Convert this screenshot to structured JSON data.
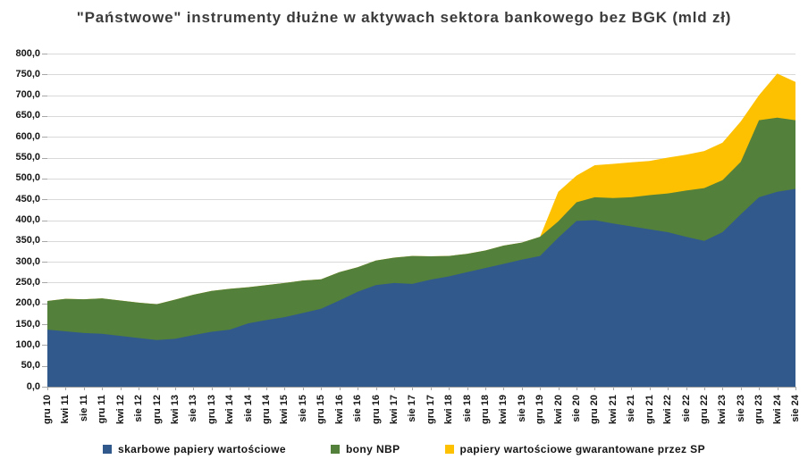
{
  "title": "\"Państwowe\" instrumenty dłużne w aktywach sektora bankowego bez BGK (mld zł)",
  "chart_data": {
    "type": "area",
    "stacked": true,
    "title": "\"Państwowe\" instrumenty dłużne w aktywach sektora bankowego bez BGK (mld zł)",
    "unit": "mld zł",
    "grid": true,
    "legend_position": "bottom",
    "x_label_rotation": -90,
    "ylim": [
      0,
      800
    ],
    "ytick_step": 50,
    "y_tick_labels": [
      "800,0",
      "750,0",
      "700,0",
      "650,0",
      "600,0",
      "550,0",
      "500,0",
      "450,0",
      "400,0",
      "350,0",
      "300,0",
      "250,0",
      "200,0",
      "150,0",
      "100,0",
      "50,0",
      "0,0"
    ],
    "categories": [
      "gru 10",
      "kwi 11",
      "sie 11",
      "gru 11",
      "kwi 12",
      "sie 12",
      "gru 12",
      "kwi 13",
      "sie 13",
      "gru 13",
      "kwi 14",
      "sie 14",
      "gru 14",
      "kwi 15",
      "sie 15",
      "gru 15",
      "kwi 16",
      "sie 16",
      "gru 16",
      "kwi 17",
      "sie 17",
      "gru 17",
      "kwi 18",
      "sie 18",
      "gru 18",
      "kwi 19",
      "sie 19",
      "gru 19",
      "kwi 20",
      "sie 20",
      "gru 20",
      "kwi 21",
      "sie 21",
      "gru 21",
      "kwi 22",
      "sie 22",
      "gru 22",
      "kwi 23",
      "sie 23",
      "gru 23",
      "kwi 24",
      "sie 24"
    ],
    "series": [
      {
        "name": "skarbowe papiery wartościowe",
        "color": "#31598C",
        "values": [
          137,
          133,
          129,
          127,
          122,
          117,
          112,
          115,
          124,
          132,
          137,
          152,
          160,
          167,
          177,
          187,
          207,
          228,
          244,
          249,
          247,
          257,
          265,
          275,
          285,
          295,
          305,
          314,
          358,
          398,
          400,
          392,
          385,
          378,
          371,
          360,
          350,
          371,
          414,
          455,
          468,
          475
        ]
      },
      {
        "name": "bony NBP",
        "color": "#53803B",
        "values": [
          69,
          78,
          81,
          85,
          85,
          85,
          86,
          94,
          97,
          98,
          98,
          87,
          84,
          82,
          78,
          71,
          68,
          59,
          59,
          61,
          67,
          56,
          49,
          44,
          42,
          44,
          41,
          46,
          39,
          45,
          55,
          61,
          70,
          82,
          93,
          111,
          127,
          125,
          126,
          185,
          178,
          165
        ]
      },
      {
        "name": "papiery wartościowe gwarantowane przez SP",
        "color": "#FDC101",
        "values": [
          0,
          0,
          0,
          0,
          0,
          0,
          0,
          0,
          0,
          0,
          0,
          0,
          0,
          0,
          0,
          0,
          0,
          0,
          0,
          0,
          0,
          0,
          0,
          0,
          0,
          0,
          0,
          0,
          71,
          64,
          77,
          82,
          84,
          82,
          86,
          86,
          89,
          90,
          97,
          60,
          106,
          92
        ]
      }
    ]
  },
  "colors": {
    "background": "#ffffff",
    "gridline": "#d9d9d9",
    "axis_line": "#9b9b9b",
    "tick": "#a6a6a6",
    "label_text": "#141414",
    "title_text": "#3b3b3b"
  }
}
